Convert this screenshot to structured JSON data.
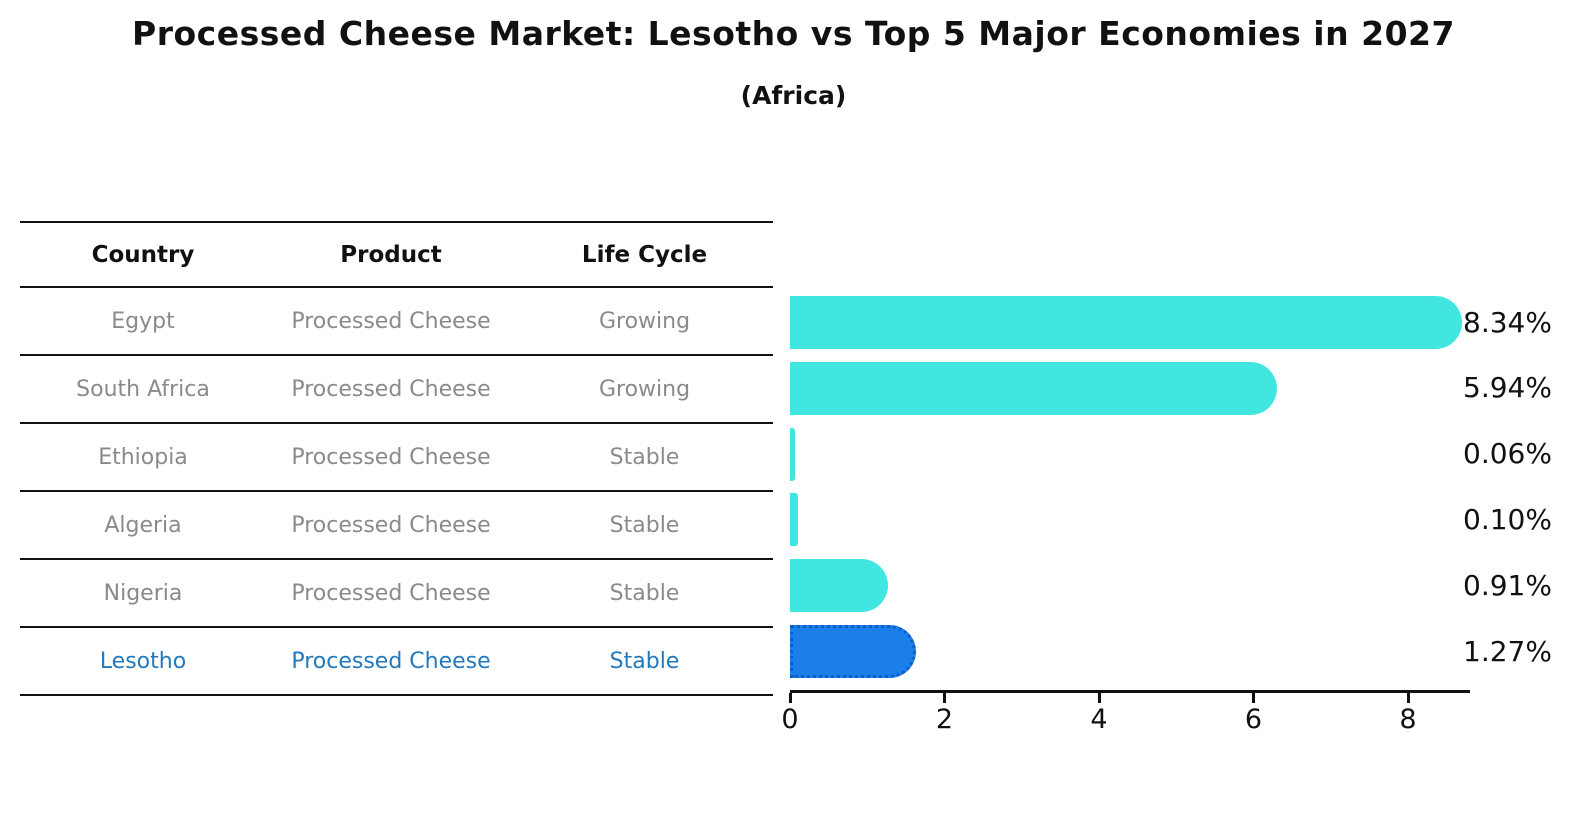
{
  "title": "Processed Cheese Market: Lesotho vs Top 5 Major Economies in 2027",
  "subtitle": "(Africa)",
  "table": {
    "headers": [
      "Country",
      "Product",
      "Life Cycle"
    ],
    "rows": [
      {
        "country": "Egypt",
        "product": "Processed Cheese",
        "life_cycle": "Growing",
        "highlight": false
      },
      {
        "country": "South Africa",
        "product": "Processed Cheese",
        "life_cycle": "Growing",
        "highlight": false
      },
      {
        "country": "Ethiopia",
        "product": "Processed Cheese",
        "life_cycle": "Stable",
        "highlight": false
      },
      {
        "country": "Algeria",
        "product": "Processed Cheese",
        "life_cycle": "Stable",
        "highlight": false
      },
      {
        "country": "Nigeria",
        "product": "Processed Cheese",
        "life_cycle": "Stable",
        "highlight": false
      },
      {
        "country": "Lesotho",
        "product": "Processed Cheese",
        "life_cycle": "Stable",
        "highlight": true
      }
    ]
  },
  "chart_data": {
    "type": "bar",
    "orientation": "horizontal",
    "title": "Processed Cheese Market: Lesotho vs Top 5 Major Economies in 2027 (Africa)",
    "categories": [
      "Egypt",
      "South Africa",
      "Ethiopia",
      "Algeria",
      "Nigeria",
      "Lesotho"
    ],
    "values": [
      8.34,
      5.94,
      0.06,
      0.1,
      0.91,
      1.27
    ],
    "value_labels": [
      "8.34%",
      "5.94%",
      "0.06%",
      "0.10%",
      "0.91%",
      "1.27%"
    ],
    "x_ticks": [
      "0",
      "2",
      "4",
      "6",
      "8"
    ],
    "x_tick_values": [
      0,
      2,
      4,
      6,
      8
    ],
    "xlim": [
      0,
      8.8
    ],
    "grid": false,
    "legend_position": "none",
    "bar_color": "#40e6df",
    "highlight_index": 5,
    "highlight_bar_color": "#1a7fe8",
    "highlight_border_color": "#0d5ec6",
    "highlight_text_color": "#2379bd",
    "table_text_color": "#8a8a8a",
    "axis_color": "#111111"
  }
}
